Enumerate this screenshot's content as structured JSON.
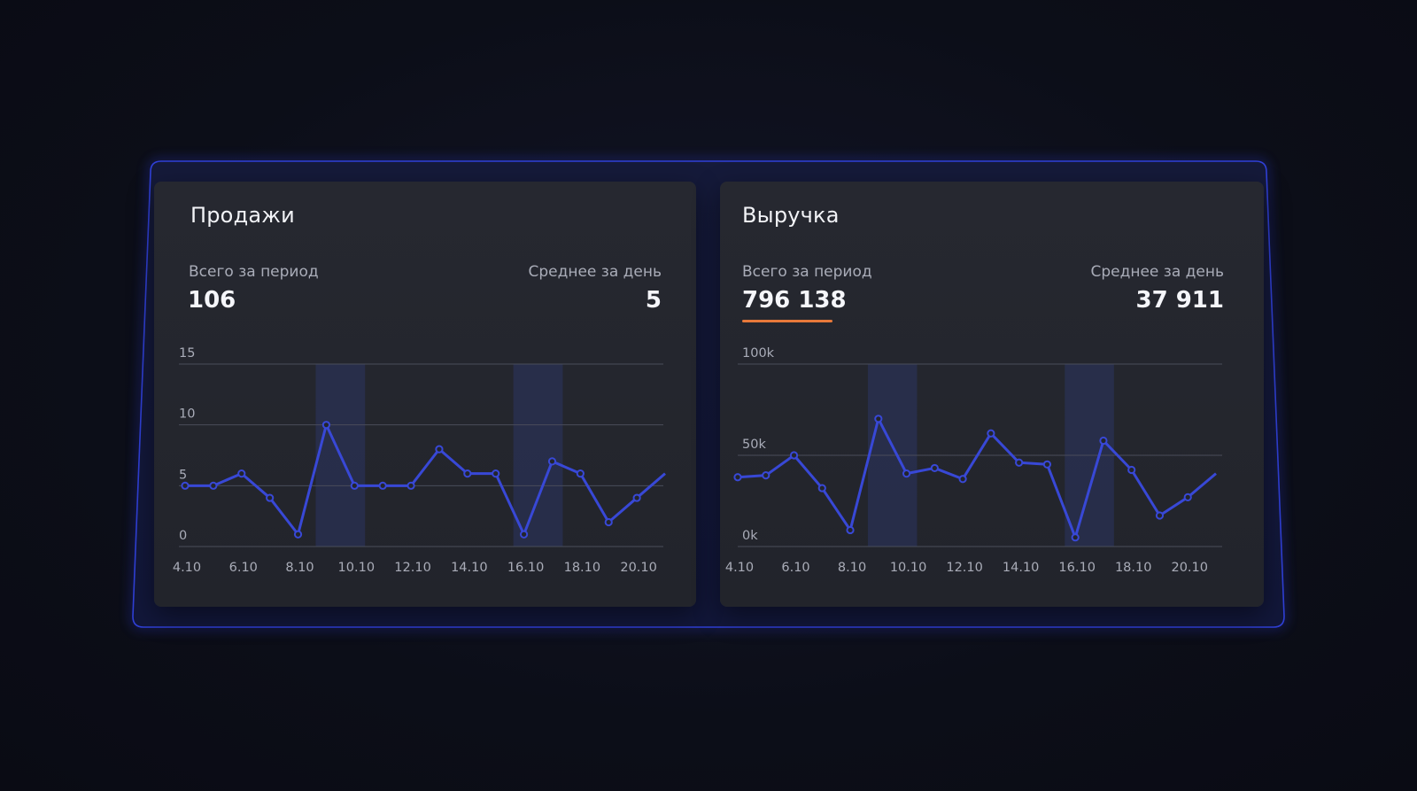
{
  "colors": {
    "line": "#3848d6",
    "highlight": "#2c3563",
    "grid": "#4a4d5a",
    "accent_underline": "#e7793a",
    "frame_glow": "#2a37c9"
  },
  "cards": [
    {
      "title": "Продажи",
      "total_label": "Всего за период",
      "total_value": "106",
      "avg_label": "Среднее за день",
      "avg_value": "5",
      "total_underlined": false
    },
    {
      "title": "Выручка",
      "total_label": "Всего за период",
      "total_value": "796 138",
      "avg_label": "Среднее за день",
      "avg_value": "37 911",
      "total_underlined": true
    }
  ],
  "chart_data": [
    {
      "type": "line",
      "title": "Продажи",
      "x": [
        "4.10",
        "5.10",
        "6.10",
        "7.10",
        "8.10",
        "9.10",
        "10.10",
        "11.10",
        "12.10",
        "13.10",
        "14.10",
        "15.10",
        "16.10",
        "17.10",
        "18.10",
        "19.10",
        "20.10",
        "21.10"
      ],
      "x_tick_labels": [
        "4.10",
        "6.10",
        "8.10",
        "10.10",
        "12.10",
        "14.10",
        "16.10",
        "18.10",
        "20.10"
      ],
      "values": [
        5,
        5,
        6,
        4,
        1,
        10,
        5,
        5,
        5,
        8,
        6,
        6,
        1,
        7,
        6,
        2,
        4,
        6
      ],
      "y_ticks": [
        "0",
        "5",
        "10",
        "15"
      ],
      "ylim": [
        0,
        15
      ],
      "highlighted_ranges": [
        [
          "9.10",
          "10.10"
        ],
        [
          "16.10",
          "17.10"
        ]
      ],
      "grid": true,
      "legend": "none"
    },
    {
      "type": "line",
      "title": "Выручка",
      "x": [
        "4.10",
        "5.10",
        "6.10",
        "7.10",
        "8.10",
        "9.10",
        "10.10",
        "11.10",
        "12.10",
        "13.10",
        "14.10",
        "15.10",
        "16.10",
        "17.10",
        "18.10",
        "19.10",
        "20.10",
        "21.10"
      ],
      "x_tick_labels": [
        "4.10",
        "6.10",
        "8.10",
        "10.10",
        "12.10",
        "14.10",
        "16.10",
        "18.10",
        "20.10"
      ],
      "values": [
        38000,
        39000,
        50000,
        32000,
        9000,
        70000,
        40000,
        43000,
        37000,
        62000,
        46000,
        45000,
        5000,
        58000,
        42000,
        17000,
        27000,
        40000
      ],
      "y_ticks": [
        "0k",
        "50k",
        "100k"
      ],
      "ylim": [
        0,
        100000
      ],
      "highlighted_ranges": [
        [
          "9.10",
          "10.10"
        ],
        [
          "16.10",
          "17.10"
        ]
      ],
      "grid": true,
      "legend": "none"
    }
  ]
}
